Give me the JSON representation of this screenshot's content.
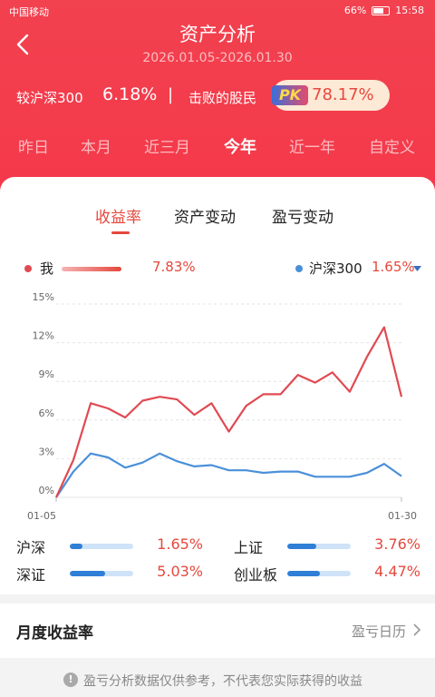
{
  "status_bar": {
    "carrier": "中国移动",
    "battery": "66%",
    "time": "15:58"
  },
  "header": {
    "title": "资产分析",
    "date_range": "2026.01.05-2026.01.30",
    "compare_label": "较沪深300",
    "compare_value": "6.18%",
    "separator": "|",
    "beat_label": "击败的股民",
    "pk_badge": "PK",
    "beat_value": "78.17%"
  },
  "periods": [
    {
      "label": "昨日",
      "active": false
    },
    {
      "label": "本月",
      "active": false
    },
    {
      "label": "近三月",
      "active": false
    },
    {
      "label": "今年",
      "active": true
    },
    {
      "label": "近一年",
      "active": false
    },
    {
      "label": "自定义",
      "active": false
    }
  ],
  "tabs": [
    {
      "label": "收益率",
      "active": true
    },
    {
      "label": "资产变动",
      "active": false
    },
    {
      "label": "盈亏变动",
      "active": false
    }
  ],
  "legend": {
    "me_label": "我",
    "me_value": "7.83%",
    "bench_label": "沪深300",
    "bench_value": "1.65%"
  },
  "chart_data": {
    "type": "line",
    "x_start_label": "01-05",
    "x_end_label": "01-30",
    "y_ticks": [
      "0%",
      "3%",
      "6%",
      "9%",
      "12%",
      "15%"
    ],
    "ylim": [
      0,
      15
    ],
    "grid": true,
    "series": [
      {
        "name": "我",
        "color": "#e04a52",
        "values": [
          0,
          2.9,
          7.3,
          6.9,
          6.2,
          7.5,
          7.8,
          7.6,
          6.4,
          7.3,
          5.1,
          7.1,
          8.0,
          8.0,
          9.5,
          8.9,
          9.7,
          8.2,
          10.9,
          13.2,
          7.8
        ]
      },
      {
        "name": "沪深300",
        "color": "#4a90d9",
        "values": [
          0,
          2.0,
          3.4,
          3.1,
          2.3,
          2.7,
          3.4,
          2.8,
          2.4,
          2.5,
          2.1,
          2.1,
          1.9,
          2.0,
          2.0,
          1.6,
          1.6,
          1.6,
          1.9,
          2.6,
          1.65
        ]
      }
    ]
  },
  "indices": [
    {
      "name": "沪深",
      "value": "1.65%",
      "fill": 0.2
    },
    {
      "name": "上证",
      "value": "3.76%",
      "fill": 0.45
    },
    {
      "name": "深证",
      "value": "5.03%",
      "fill": 0.55
    },
    {
      "name": "创业板",
      "value": "4.47%",
      "fill": 0.52
    }
  ],
  "monthly": {
    "title": "月度收益率",
    "calendar_link": "盈亏日历"
  },
  "footer": {
    "disclaimer": "盈亏分析数据仅供参考，不代表您实际获得的收益"
  },
  "colors": {
    "brand_red": "#f2414f",
    "accent_red": "#e5483d",
    "blue": "#2f7fd7"
  }
}
